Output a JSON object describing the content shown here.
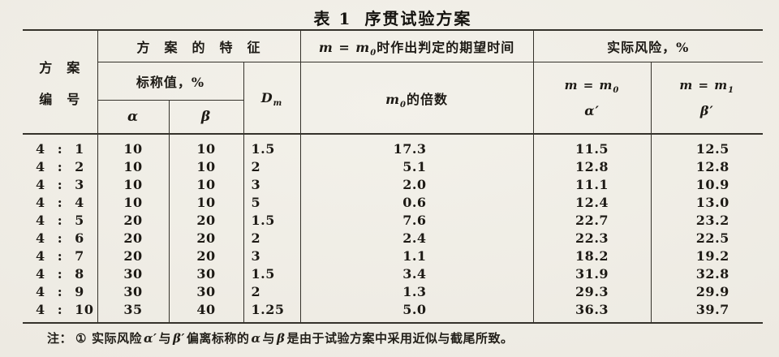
{
  "title": {
    "label": "表 1",
    "name": "序贯试验方案"
  },
  "table": {
    "header": {
      "plan_no_line1": "方　案",
      "plan_no_line2": "编　号",
      "plan_characteristics": "方　案　的　特　征",
      "nominal_value": "标称值，%",
      "alpha": "α",
      "beta": "β",
      "dm": {
        "lead": "D",
        "sub": "m"
      },
      "expected_time": {
        "lead": "m = m",
        "sub": "0",
        "rest": "时作出判定的期望时间"
      },
      "multiple": {
        "lead": "m",
        "sub": "0",
        "rest": "的倍数"
      },
      "actual_risk": "实际风险，%",
      "m_eq_m0": {
        "lead": "m = m",
        "sub": "0"
      },
      "alpha_prime": "α′",
      "m_eq_m1": {
        "lead": "m = m",
        "sub": "1"
      },
      "beta_prime": "β′"
    },
    "rows": [
      {
        "plan": "4 : 1",
        "alpha": "10",
        "beta": "10",
        "dm": "1.5",
        "multiple": "17.3",
        "alpha_prime": "11.5",
        "beta_prime": "12.5"
      },
      {
        "plan": "4 : 2",
        "alpha": "10",
        "beta": "10",
        "dm": "2",
        "multiple": "5.1",
        "alpha_prime": "12.8",
        "beta_prime": "12.8"
      },
      {
        "plan": "4 : 3",
        "alpha": "10",
        "beta": "10",
        "dm": "3",
        "multiple": "2.0",
        "alpha_prime": "11.1",
        "beta_prime": "10.9"
      },
      {
        "plan": "4 : 4",
        "alpha": "10",
        "beta": "10",
        "dm": "5",
        "multiple": "0.6",
        "alpha_prime": "12.4",
        "beta_prime": "13.0"
      },
      {
        "plan": "4 : 5",
        "alpha": "20",
        "beta": "20",
        "dm": "1.5",
        "multiple": "7.6",
        "alpha_prime": "22.7",
        "beta_prime": "23.2"
      },
      {
        "plan": "4 : 6",
        "alpha": "20",
        "beta": "20",
        "dm": "2",
        "multiple": "2.4",
        "alpha_prime": "22.3",
        "beta_prime": "22.5"
      },
      {
        "plan": "4 : 7",
        "alpha": "20",
        "beta": "20",
        "dm": "3",
        "multiple": "1.1",
        "alpha_prime": "18.2",
        "beta_prime": "19.2"
      },
      {
        "plan": "4 : 8",
        "alpha": "30",
        "beta": "30",
        "dm": "1.5",
        "multiple": "3.4",
        "alpha_prime": "31.9",
        "beta_prime": "32.8"
      },
      {
        "plan": "4 : 9",
        "alpha": "30",
        "beta": "30",
        "dm": "2",
        "multiple": "1.3",
        "alpha_prime": "29.3",
        "beta_prime": "29.9"
      },
      {
        "plan": "4 : 10",
        "alpha": "35",
        "beta": "40",
        "dm": "1.25",
        "multiple": "5.0",
        "alpha_prime": "36.3",
        "beta_prime": "39.7"
      }
    ]
  },
  "footnote": {
    "note_label": "注：",
    "item_no": "①",
    "prefix": "实际风险",
    "alpha_prime": "α′",
    "join1": "与",
    "beta_prime": "β′",
    "mid": "偏离标称的",
    "alpha": "α",
    "join2": "与",
    "beta": "β",
    "suffix": "是由于试验方案中采用近似与截尾所致。"
  }
}
